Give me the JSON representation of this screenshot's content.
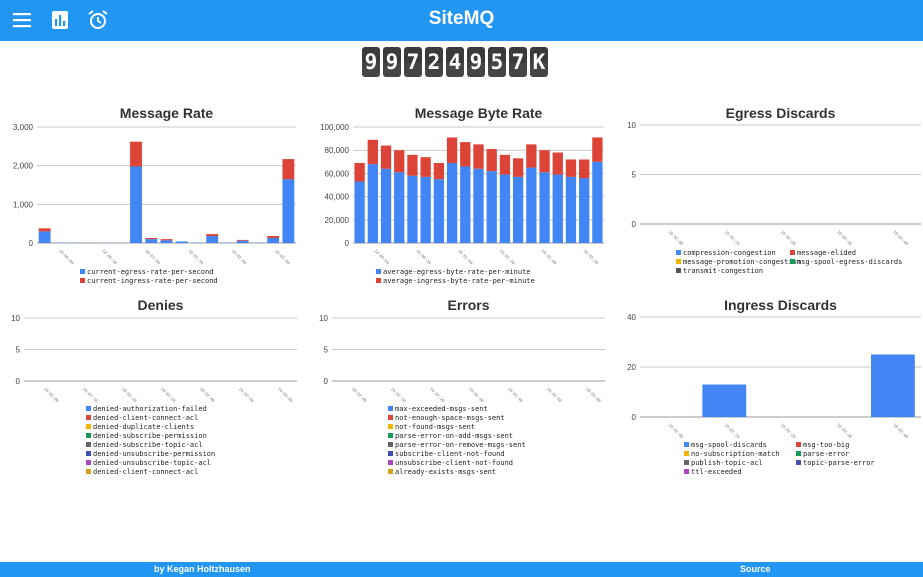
{
  "header": {
    "title": "SiteMQ",
    "menu_icon": "menu-icon",
    "chart_icon": "bar-chart-icon",
    "alarm_icon": "alarm-clock-icon"
  },
  "counter": {
    "digits": [
      "9",
      "9",
      "7",
      "2",
      "4",
      "9",
      "5",
      "7",
      "K"
    ]
  },
  "footer": {
    "author": "by Kegan Holtzhausen",
    "source": "Source"
  },
  "colors": {
    "blue": "#4285f4",
    "red": "#db4437",
    "accent": "#2196f3"
  },
  "chart_data": [
    {
      "id": "message-rate",
      "type": "bar",
      "stacked": true,
      "title": "Message Rate",
      "ylim": [
        0,
        3000
      ],
      "yticks": [
        0,
        1000,
        2000,
        3000
      ],
      "yticklabels": [
        "0",
        "1,000",
        "2,000",
        "3,000"
      ],
      "xticklabels": [
        "10:00:04",
        "10:00:34",
        "10:01:04",
        "10:01:34",
        "10:02:04",
        "10:02:34"
      ],
      "series": [
        {
          "name": "current-egress-rate-per-second",
          "color": "#4285f4",
          "values": [
            300,
            10,
            10,
            5,
            5,
            5,
            1980,
            100,
            70,
            40,
            10,
            180,
            10,
            60,
            10,
            130,
            1650
          ]
        },
        {
          "name": "current-ingress-rate-per-second",
          "color": "#db4437",
          "values": [
            80,
            0,
            0,
            0,
            0,
            0,
            640,
            30,
            30,
            0,
            0,
            50,
            0,
            20,
            0,
            50,
            520
          ]
        }
      ]
    },
    {
      "id": "message-byte-rate",
      "type": "bar",
      "stacked": true,
      "title": "Message Byte Rate",
      "ylim": [
        0,
        100000
      ],
      "yticks": [
        0,
        20000,
        40000,
        60000,
        80000,
        100000
      ],
      "yticklabels": [
        "0",
        "20,000",
        "40,000",
        "60,000",
        "80,000",
        "100,000"
      ],
      "xticklabels": [
        "10:00:04",
        "10:00:34",
        "10:01:04",
        "10:01:34",
        "10:02:04",
        "10:02:34"
      ],
      "series": [
        {
          "name": "average-egress-byte-rate-per-minute",
          "color": "#4285f4",
          "values": [
            53000,
            68000,
            64000,
            61000,
            58000,
            57000,
            55000,
            69000,
            66000,
            64000,
            62000,
            59000,
            57000,
            65000,
            61000,
            59000,
            57000,
            56000,
            70000
          ]
        },
        {
          "name": "average-ingress-byte-rate-per-minute",
          "color": "#db4437",
          "values": [
            16000,
            21000,
            20000,
            19000,
            18000,
            17000,
            14000,
            22000,
            21000,
            21000,
            19000,
            17000,
            16000,
            20000,
            19000,
            19000,
            15000,
            16000,
            21000
          ]
        }
      ]
    },
    {
      "id": "egress-discards",
      "type": "bar",
      "title": "Egress Discards",
      "ylim": [
        0,
        10
      ],
      "yticks": [
        0,
        5,
        10
      ],
      "yticklabels": [
        "0",
        "5",
        "10"
      ],
      "xticklabels": [
        "10:02:00",
        "10:02:10",
        "10:02:20",
        "10:02:30",
        "10:02:40"
      ],
      "legend_columns": 2,
      "series": [
        {
          "name": "compression-congestion",
          "color": "#4285f4",
          "values": [
            0,
            0,
            0,
            0,
            0
          ]
        },
        {
          "name": "message-elided",
          "color": "#db4437",
          "values": [
            0,
            0,
            0,
            0,
            0
          ]
        },
        {
          "name": "message-promotion-congestion",
          "color": "#f4b400",
          "values": [
            0,
            0,
            0,
            0,
            0
          ]
        },
        {
          "name": "msg-spool-egress-discards",
          "color": "#0f9d58",
          "values": [
            0,
            0,
            0,
            0,
            0
          ]
        },
        {
          "name": "transmit-congestion",
          "color": "#555555",
          "values": [
            0,
            0,
            0,
            0,
            0
          ]
        }
      ]
    },
    {
      "id": "denies",
      "type": "bar",
      "title": "Denies",
      "ylim": [
        0,
        10
      ],
      "yticks": [
        0,
        5,
        10
      ],
      "yticklabels": [
        "0",
        "5",
        "10"
      ],
      "xticklabels": [
        "10:02:00",
        "10:02:10",
        "10:02:20",
        "10:02:30",
        "10:02:40",
        "10:02:50",
        "10:03:00"
      ],
      "legend_columns": 1,
      "series": [
        {
          "name": "denied-authorization-failed",
          "color": "#4285f4",
          "values": []
        },
        {
          "name": "denied-client-connect-acl",
          "color": "#db4437",
          "values": []
        },
        {
          "name": "denied-duplicate-clients",
          "color": "#f4b400",
          "values": []
        },
        {
          "name": "denied-subscribe-permission",
          "color": "#0f9d58",
          "values": []
        },
        {
          "name": "denied-subscribe-topic-acl",
          "color": "#666666",
          "values": []
        },
        {
          "name": "denied-unsubscribe-permission",
          "color": "#3f51b5",
          "values": []
        },
        {
          "name": "denied-unsubscribe-topic-acl",
          "color": "#ab47bc",
          "values": []
        },
        {
          "name": "denied-client-connect-acl",
          "color": "#d4a017",
          "values": []
        }
      ]
    },
    {
      "id": "errors",
      "type": "bar",
      "title": "Errors",
      "ylim": [
        0,
        10
      ],
      "yticks": [
        0,
        5,
        10
      ],
      "yticklabels": [
        "0",
        "5",
        "10"
      ],
      "xticklabels": [
        "10:02:00",
        "10:02:10",
        "10:02:20",
        "10:02:30",
        "10:02:40",
        "10:02:50",
        "10:03:00"
      ],
      "legend_columns": 1,
      "series": [
        {
          "name": "max-exceeded-msgs-sent",
          "color": "#4285f4",
          "values": []
        },
        {
          "name": "not-enough-space-msgs-sent",
          "color": "#db4437",
          "values": []
        },
        {
          "name": "not-found-msgs-sent",
          "color": "#f4b400",
          "values": []
        },
        {
          "name": "parse-error-on-add-msgs-sent",
          "color": "#0f9d58",
          "values": []
        },
        {
          "name": "parse-error-on-remove-msgs-sent",
          "color": "#666666",
          "values": []
        },
        {
          "name": "subscribe-client-not-found",
          "color": "#3f51b5",
          "values": []
        },
        {
          "name": "unsubscribe-client-not-found",
          "color": "#ab47bc",
          "values": []
        },
        {
          "name": "already-exists-msgs-sent",
          "color": "#d4a017",
          "values": []
        }
      ]
    },
    {
      "id": "ingress-discards",
      "type": "bar",
      "title": "Ingress Discards",
      "ylim": [
        0,
        40
      ],
      "yticks": [
        0,
        20,
        40
      ],
      "yticklabels": [
        "0",
        "20",
        "40"
      ],
      "xticklabels": [
        "10:02:00",
        "10:02:10",
        "10:02:20",
        "10:02:30",
        "10:02:40"
      ],
      "legend_columns": 2,
      "series": [
        {
          "name": "msg-spool-discards",
          "color": "#4285f4",
          "values": [
            0,
            13,
            0,
            0,
            25
          ]
        },
        {
          "name": "msg-too-big",
          "color": "#db4437",
          "values": [
            0,
            0,
            0,
            0,
            0
          ]
        },
        {
          "name": "no-subscription-match",
          "color": "#f4b400",
          "values": [
            0,
            0,
            0,
            0,
            0
          ]
        },
        {
          "name": "parse-error",
          "color": "#0f9d58",
          "values": [
            0,
            0,
            0,
            0,
            0
          ]
        },
        {
          "name": "publish-topic-acl",
          "color": "#666666",
          "values": [
            0,
            0,
            0,
            0,
            0
          ]
        },
        {
          "name": "topic-parse-error",
          "color": "#3f51b5",
          "values": [
            0,
            0,
            0,
            0,
            0
          ]
        },
        {
          "name": "ttl-exceeded",
          "color": "#ab47bc",
          "values": [
            0,
            0,
            0,
            0,
            0
          ]
        }
      ]
    }
  ]
}
